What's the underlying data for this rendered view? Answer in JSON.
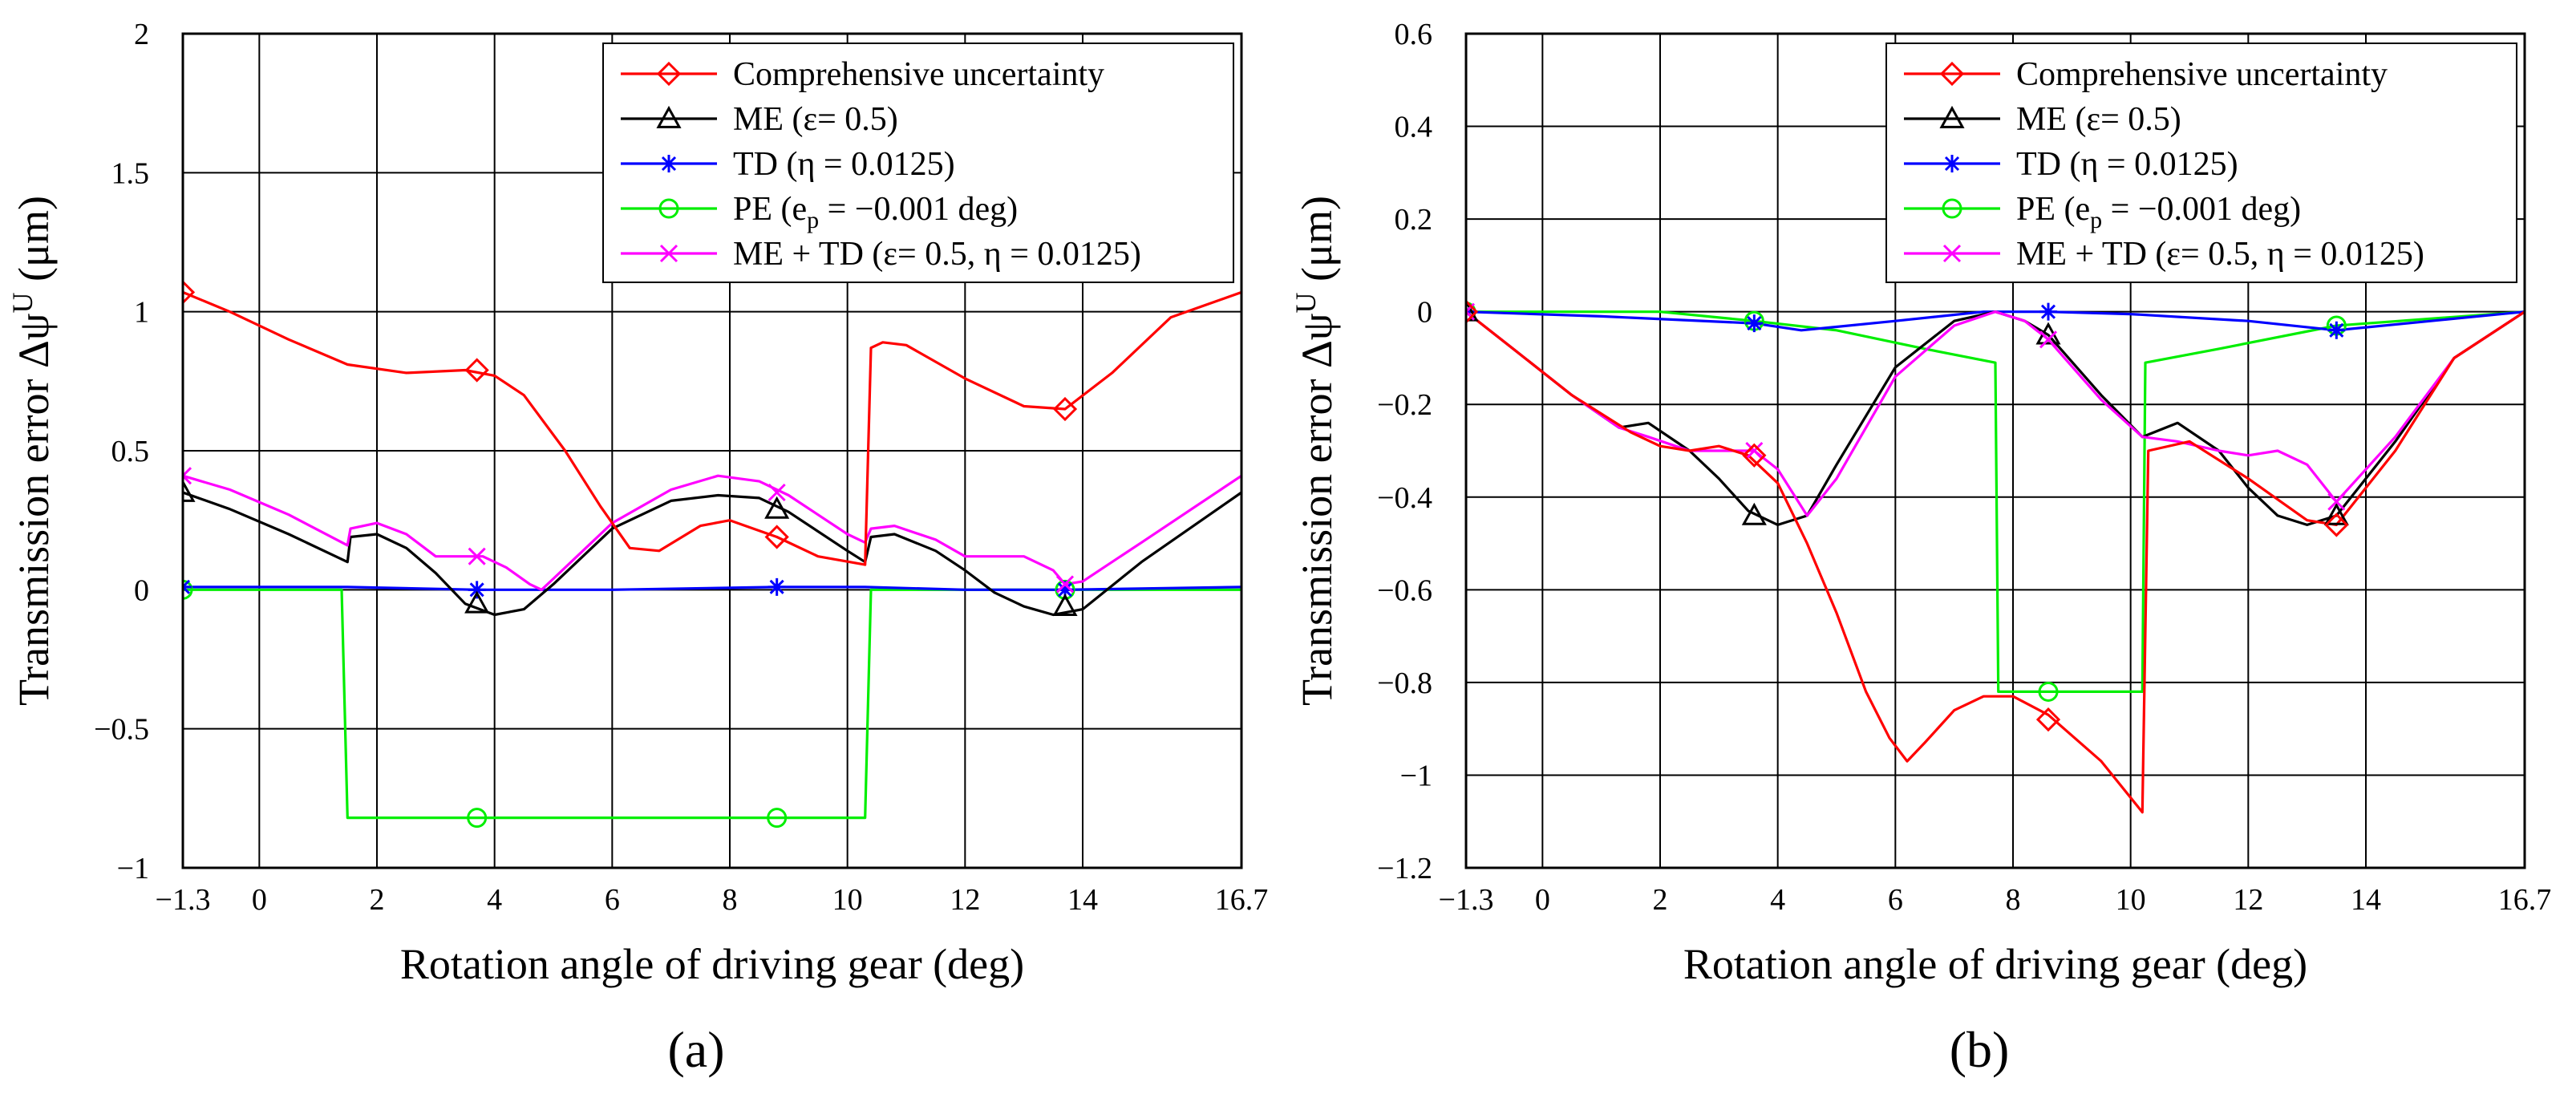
{
  "chart_data": [
    {
      "type": "line",
      "panel_label": "(a)",
      "xlabel": "Rotation angle of driving gear (deg)",
      "ylabel": "Transmission error Δψ",
      "ylabel_sup": "U",
      "ylabel_unit": " (μm)",
      "xlim": [
        -1.3,
        16.7
      ],
      "ylim": [
        -1,
        2
      ],
      "xticks": [
        -1.3,
        0,
        2,
        4,
        6,
        8,
        10,
        12,
        14,
        16.7
      ],
      "xtick_labels": [
        "−1.3",
        "0",
        "2",
        "4",
        "6",
        "8",
        "10",
        "12",
        "14",
        "16.7"
      ],
      "yticks": [
        -1,
        -0.5,
        0,
        0.5,
        1,
        1.5,
        2
      ],
      "ytick_labels": [
        "−1",
        "−0.5",
        "0",
        "0.5",
        "1",
        "1.5",
        "2"
      ],
      "grid": true,
      "legend_position": "top-right",
      "series": [
        {
          "name": "Comprehensive uncertainty",
          "color": "#ff0000",
          "marker": "diamond",
          "x": [
            -1.3,
            -0.5,
            0.5,
            1.5,
            2.5,
            3.5,
            4.0,
            4.5,
            5.2,
            5.8,
            6.3,
            6.8,
            7.5,
            8.0,
            8.8,
            9.5,
            10.3,
            10.4,
            10.6,
            11.0,
            12.0,
            13.0,
            13.7,
            14.5,
            15.5,
            16.7
          ],
          "y": [
            1.07,
            1.0,
            0.9,
            0.81,
            0.78,
            0.79,
            0.77,
            0.7,
            0.5,
            0.3,
            0.15,
            0.14,
            0.23,
            0.25,
            0.19,
            0.12,
            0.09,
            0.87,
            0.89,
            0.88,
            0.76,
            0.66,
            0.65,
            0.78,
            0.98,
            1.07
          ],
          "marker_x": [
            -1.3,
            3.7,
            8.8,
            13.7
          ],
          "marker_y": [
            1.07,
            0.79,
            0.19,
            0.65
          ]
        },
        {
          "name": "ME (ε= 0.5)",
          "color": "#000000",
          "marker": "triangle",
          "x": [
            -1.3,
            -0.5,
            0.5,
            1.5,
            1.55,
            2.0,
            2.5,
            3.0,
            3.5,
            4.0,
            4.5,
            5.0,
            5.5,
            6.0,
            7.0,
            7.8,
            8.5,
            9.0,
            10.0,
            10.3,
            10.4,
            10.8,
            11.5,
            12.0,
            12.5,
            13.0,
            13.5,
            14.0,
            15.0,
            16.7
          ],
          "y": [
            0.35,
            0.29,
            0.2,
            0.1,
            0.19,
            0.2,
            0.15,
            0.06,
            -0.05,
            -0.09,
            -0.07,
            0.02,
            0.12,
            0.22,
            0.32,
            0.34,
            0.33,
            0.28,
            0.14,
            0.1,
            0.19,
            0.2,
            0.14,
            0.07,
            -0.01,
            -0.06,
            -0.09,
            -0.07,
            0.1,
            0.35
          ],
          "marker_x": [
            -1.3,
            3.7,
            8.8,
            13.7
          ],
          "marker_y": [
            0.35,
            -0.05,
            0.29,
            -0.06
          ]
        },
        {
          "name": "TD (η = 0.0125)",
          "color": "#0000ff",
          "marker": "asterisk",
          "x": [
            -1.3,
            1.5,
            3.7,
            6.0,
            8.8,
            10.3,
            12.0,
            13.7,
            16.7
          ],
          "y": [
            0.01,
            0.01,
            0.0,
            0.0,
            0.01,
            0.01,
            0.0,
            0.0,
            0.01
          ],
          "marker_x": [
            -1.3,
            3.7,
            8.8,
            13.7
          ],
          "marker_y": [
            0.01,
            0.0,
            0.01,
            0.0
          ]
        },
        {
          "name": "PE (e",
          "name_sub": "p",
          "name_rest": " = −0.001 deg)",
          "color": "#00ee00",
          "marker": "circle",
          "x": [
            -1.3,
            1.4,
            1.5,
            10.3,
            10.4,
            16.7
          ],
          "y": [
            0.0,
            0.0,
            -0.82,
            -0.82,
            0.0,
            0.0
          ],
          "marker_x": [
            -1.3,
            3.7,
            8.8,
            13.7
          ],
          "marker_y": [
            0.0,
            -0.82,
            -0.82,
            0.0
          ]
        },
        {
          "name": "ME + TD (ε= 0.5, η = 0.0125)",
          "color": "#ff00ff",
          "marker": "x",
          "x": [
            -1.3,
            -0.5,
            0.5,
            1.5,
            1.55,
            2.0,
            2.5,
            3.0,
            3.5,
            3.8,
            4.2,
            4.6,
            4.8,
            5.0,
            5.5,
            6.0,
            7.0,
            7.8,
            8.5,
            9.0,
            10.0,
            10.3,
            10.4,
            10.8,
            11.5,
            12.0,
            12.5,
            13.0,
            13.5,
            13.7,
            14.0,
            15.0,
            16.7
          ],
          "y": [
            0.41,
            0.36,
            0.27,
            0.16,
            0.22,
            0.24,
            0.2,
            0.12,
            0.12,
            0.12,
            0.08,
            0.02,
            0.0,
            0.04,
            0.14,
            0.24,
            0.36,
            0.41,
            0.39,
            0.34,
            0.2,
            0.17,
            0.22,
            0.23,
            0.18,
            0.12,
            0.12,
            0.12,
            0.07,
            0.02,
            0.03,
            0.17,
            0.41
          ],
          "marker_x": [
            -1.3,
            3.7,
            8.8,
            13.7
          ],
          "marker_y": [
            0.41,
            0.12,
            0.35,
            0.02
          ]
        }
      ]
    },
    {
      "type": "line",
      "panel_label": "(b)",
      "xlabel": "Rotation angle of driving gear (deg)",
      "ylabel": "Transmission error Δψ",
      "ylabel_sup": "U",
      "ylabel_unit": " (μm)",
      "xlim": [
        -1.3,
        16.7
      ],
      "ylim": [
        -1.2,
        0.6
      ],
      "xticks": [
        -1.3,
        0,
        2,
        4,
        6,
        8,
        10,
        12,
        14,
        16.7
      ],
      "xtick_labels": [
        "−1.3",
        "0",
        "2",
        "4",
        "6",
        "8",
        "10",
        "12",
        "14",
        "16.7"
      ],
      "yticks": [
        -1.2,
        -1,
        -0.8,
        -0.6,
        -0.4,
        -0.2,
        0,
        0.2,
        0.4,
        0.6
      ],
      "ytick_labels": [
        "−1.2",
        "−1",
        "−0.8",
        "−0.6",
        "−0.4",
        "−0.2",
        "0",
        "0.2",
        "0.4",
        "0.6"
      ],
      "grid": true,
      "legend_position": "top-right",
      "series": [
        {
          "name": "Comprehensive uncertainty",
          "color": "#ff0000",
          "marker": "diamond",
          "x": [
            -1.3,
            -0.5,
            0.5,
            1.5,
            2.0,
            2.5,
            3.0,
            3.5,
            4.0,
            4.5,
            5.0,
            5.5,
            5.9,
            6.2,
            6.5,
            7.0,
            7.5,
            8.0,
            8.6,
            9.5,
            10.2,
            10.3,
            11.0,
            12.0,
            13.0,
            13.5,
            14.5,
            15.5,
            16.7
          ],
          "y": [
            0.0,
            -0.08,
            -0.18,
            -0.26,
            -0.29,
            -0.3,
            -0.29,
            -0.31,
            -0.37,
            -0.5,
            -0.65,
            -0.82,
            -0.92,
            -0.97,
            -0.93,
            -0.86,
            -0.83,
            -0.83,
            -0.87,
            -0.97,
            -1.08,
            -0.3,
            -0.28,
            -0.36,
            -0.45,
            -0.46,
            -0.3,
            -0.1,
            0.0
          ],
          "marker_x": [
            -1.3,
            3.6,
            8.6,
            13.5
          ],
          "marker_y": [
            0.0,
            -0.31,
            -0.88,
            -0.46
          ]
        },
        {
          "name": "ME (ε= 0.5)",
          "color": "#000000",
          "marker": "triangle",
          "x": [
            -1.3,
            -0.5,
            0.5,
            1.3,
            1.8,
            2.5,
            3.0,
            3.5,
            4.0,
            4.5,
            5.0,
            6.0,
            7.0,
            7.7,
            8.2,
            8.6,
            9.5,
            10.2,
            10.8,
            11.5,
            12.0,
            12.5,
            13.0,
            13.5,
            14.5,
            15.5,
            16.7
          ],
          "y": [
            0.0,
            -0.08,
            -0.18,
            -0.25,
            -0.24,
            -0.3,
            -0.36,
            -0.43,
            -0.46,
            -0.44,
            -0.33,
            -0.12,
            -0.02,
            0.0,
            -0.02,
            -0.05,
            -0.18,
            -0.27,
            -0.24,
            -0.3,
            -0.38,
            -0.44,
            -0.46,
            -0.44,
            -0.28,
            -0.1,
            0.0
          ],
          "marker_x": [
            -1.3,
            3.6,
            8.6,
            13.5
          ],
          "marker_y": [
            0.0,
            -0.44,
            -0.05,
            -0.44
          ]
        },
        {
          "name": "TD (η = 0.0125)",
          "color": "#0000ff",
          "marker": "asterisk",
          "x": [
            -1.3,
            1.0,
            3.6,
            4.4,
            6.0,
            7.5,
            8.6,
            10.0,
            12.0,
            13.5,
            16.7
          ],
          "y": [
            0.0,
            -0.01,
            -0.025,
            -0.04,
            -0.02,
            0.0,
            0.0,
            -0.005,
            -0.02,
            -0.04,
            0.0
          ],
          "marker_x": [
            -1.3,
            3.6,
            8.6,
            13.5
          ],
          "marker_y": [
            0.0,
            -0.025,
            0.0,
            -0.04
          ]
        },
        {
          "name": "PE (e",
          "name_sub": "p",
          "name_rest": " = −0.001 deg)",
          "color": "#00ee00",
          "marker": "circle",
          "x": [
            -1.3,
            2.0,
            3.6,
            5.0,
            6.5,
            7.7,
            7.75,
            10.2,
            10.25,
            11.5,
            13.5,
            16.7
          ],
          "y": [
            0.0,
            0.0,
            -0.02,
            -0.04,
            -0.08,
            -0.11,
            -0.82,
            -0.82,
            -0.11,
            -0.08,
            -0.03,
            0.0
          ],
          "marker_x": [
            -1.3,
            3.6,
            8.6,
            13.5
          ],
          "marker_y": [
            0.0,
            -0.02,
            -0.82,
            -0.03
          ]
        },
        {
          "name": "ME + TD (ε= 0.5, η = 0.0125)",
          "color": "#ff00ff",
          "marker": "x",
          "x": [
            -1.3,
            -0.5,
            0.5,
            1.3,
            1.8,
            2.5,
            3.0,
            3.6,
            4.0,
            4.5,
            5.0,
            6.0,
            7.0,
            7.7,
            8.2,
            8.6,
            9.5,
            10.2,
            10.8,
            11.5,
            12.0,
            12.5,
            13.0,
            13.5,
            14.5,
            15.5,
            16.7
          ],
          "y": [
            0.0,
            -0.08,
            -0.18,
            -0.25,
            -0.27,
            -0.3,
            -0.3,
            -0.3,
            -0.34,
            -0.44,
            -0.36,
            -0.14,
            -0.03,
            0.0,
            -0.02,
            -0.06,
            -0.19,
            -0.27,
            -0.28,
            -0.3,
            -0.31,
            -0.3,
            -0.33,
            -0.41,
            -0.27,
            -0.1,
            0.0
          ],
          "marker_x": [
            -1.3,
            3.6,
            8.6,
            13.5
          ],
          "marker_y": [
            0.0,
            -0.3,
            -0.06,
            -0.41
          ]
        }
      ]
    }
  ]
}
